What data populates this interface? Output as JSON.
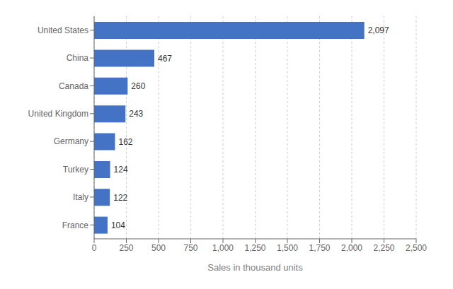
{
  "chart_data": {
    "type": "bar",
    "orientation": "horizontal",
    "categories": [
      "France",
      "Italy",
      "Turkey",
      "Germany",
      "United Kingdom",
      "Canada",
      "China",
      "United States"
    ],
    "values": [
      104,
      122,
      124,
      162,
      243,
      260,
      467,
      2097
    ],
    "value_labels": [
      "104",
      "122",
      "124",
      "162",
      "243",
      "260",
      "467",
      "2,097"
    ],
    "data_labels": true,
    "color": "#4472c4",
    "xlabel": "Sales in thousand units",
    "xlim": [
      0,
      2500
    ],
    "xticks": [
      0,
      250,
      500,
      750,
      {
        "value": 1000,
        "label": "1,000"
      },
      {
        "value": 1250,
        "label": "1,250"
      },
      {
        "value": 1500,
        "label": "1,500"
      },
      {
        "value": 1750,
        "label": "1,750"
      },
      {
        "value": 2000,
        "label": "2,000"
      },
      {
        "value": 2250,
        "label": "2,250"
      },
      {
        "value": 2500,
        "label": "2,500"
      }
    ],
    "grid": true
  }
}
